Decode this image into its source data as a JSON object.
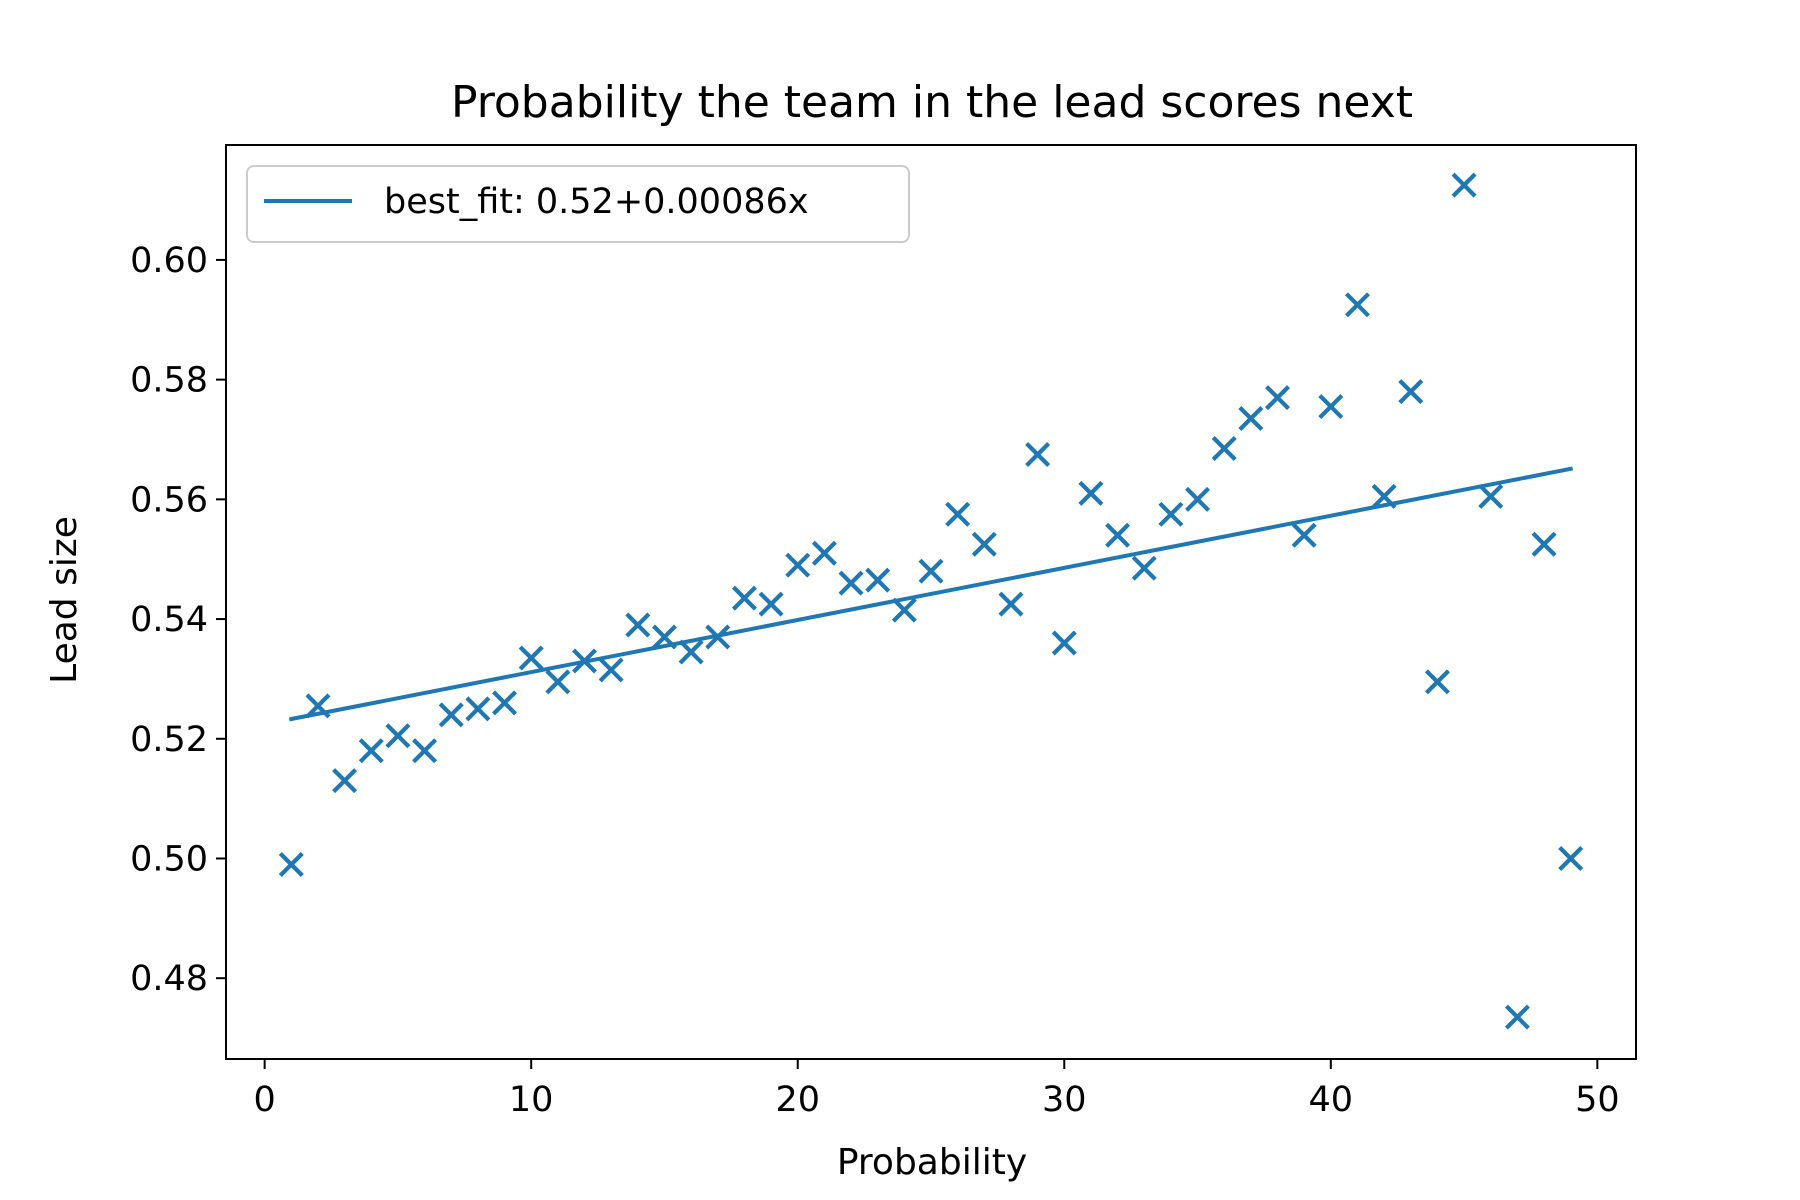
{
  "chart_data": {
    "type": "scatter",
    "title": "Probability the team in the lead scores next",
    "xlabel": "Probability",
    "ylabel": "Lead size",
    "xlim": [
      -1.45,
      51.45
    ],
    "ylim": [
      0.4665,
      0.6192
    ],
    "xticks": [
      0,
      10,
      20,
      30,
      40,
      50
    ],
    "xtick_labels": [
      "0",
      "10",
      "20",
      "30",
      "40",
      "50"
    ],
    "yticks": [
      0.48,
      0.5,
      0.52,
      0.54,
      0.56,
      0.58,
      0.6
    ],
    "ytick_labels": [
      "0.48",
      "0.50",
      "0.52",
      "0.54",
      "0.56",
      "0.58",
      "0.60"
    ],
    "grid": false,
    "legend_position": "upper-left",
    "color": "#1f77b4",
    "series": [
      {
        "marker": "x",
        "x": [
          1,
          2,
          3,
          4,
          5,
          6,
          7,
          8,
          9,
          10,
          11,
          12,
          13,
          14,
          15,
          16,
          17,
          18,
          19,
          20,
          21,
          22,
          23,
          24,
          25,
          26,
          27,
          28,
          29,
          30,
          31,
          32,
          33,
          34,
          35,
          36,
          37,
          38,
          39,
          40,
          41,
          42,
          43,
          44,
          45,
          46,
          47,
          48,
          49
        ],
        "y": [
          0.499,
          0.5255,
          0.513,
          0.518,
          0.5205,
          0.518,
          0.524,
          0.525,
          0.526,
          0.5335,
          0.5295,
          0.533,
          0.5315,
          0.539,
          0.537,
          0.5345,
          0.537,
          0.5435,
          0.5425,
          0.549,
          0.551,
          0.546,
          0.5465,
          0.5415,
          0.548,
          0.5575,
          0.5525,
          0.5425,
          0.5675,
          0.536,
          0.561,
          0.554,
          0.5485,
          0.5575,
          0.56,
          0.5685,
          0.5735,
          0.577,
          0.554,
          0.5755,
          0.5925,
          0.5605,
          0.578,
          0.5295,
          0.6125,
          0.5605,
          0.4735,
          0.5525,
          0.5
        ]
      },
      {
        "name": "best_fit: 0.52+0.00086x",
        "type": "line",
        "x": [
          1,
          49
        ],
        "y": [
          0.5233,
          0.5651
        ]
      }
    ]
  }
}
